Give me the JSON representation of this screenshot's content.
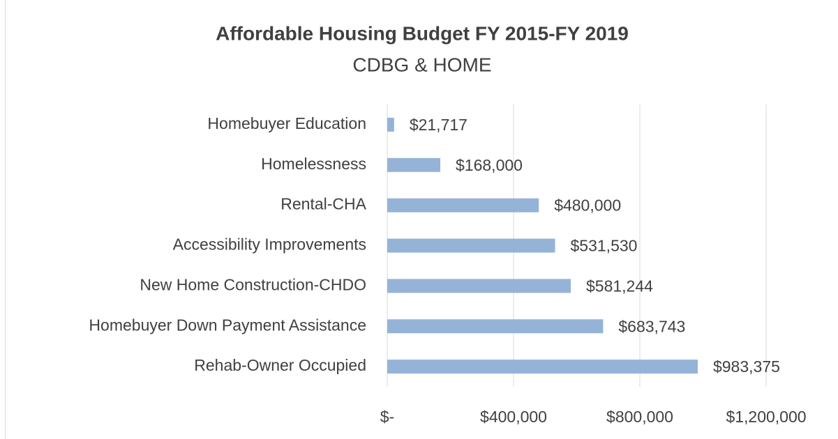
{
  "chart_data": {
    "type": "hbar",
    "title": "Affordable Housing Budget FY 2015-FY 2019",
    "subtitle": "CDBG & HOME",
    "categories": [
      "Homebuyer Education",
      "Homelessness",
      "Rental-CHA",
      "Accessibility Improvements",
      "New Home Construction-CHDO",
      "Homebuyer Down Payment Assistance",
      "Rehab-Owner Occupied"
    ],
    "values": [
      21717,
      168000,
      480000,
      531530,
      581244,
      683743,
      983375
    ],
    "value_labels": [
      "$21,717",
      "$168,000",
      "$480,000",
      "$531,530",
      "$581,244",
      "$683,743",
      "$983,375"
    ],
    "color": "#95b3d7",
    "xlim": [
      0,
      1200000
    ],
    "xticks": [
      {
        "value": 0,
        "label": "$-"
      },
      {
        "value": 400000,
        "label": "$400,000"
      },
      {
        "value": 800000,
        "label": "$800,000"
      },
      {
        "value": 1200000,
        "label": "$1,200,000"
      }
    ],
    "grid": true
  }
}
